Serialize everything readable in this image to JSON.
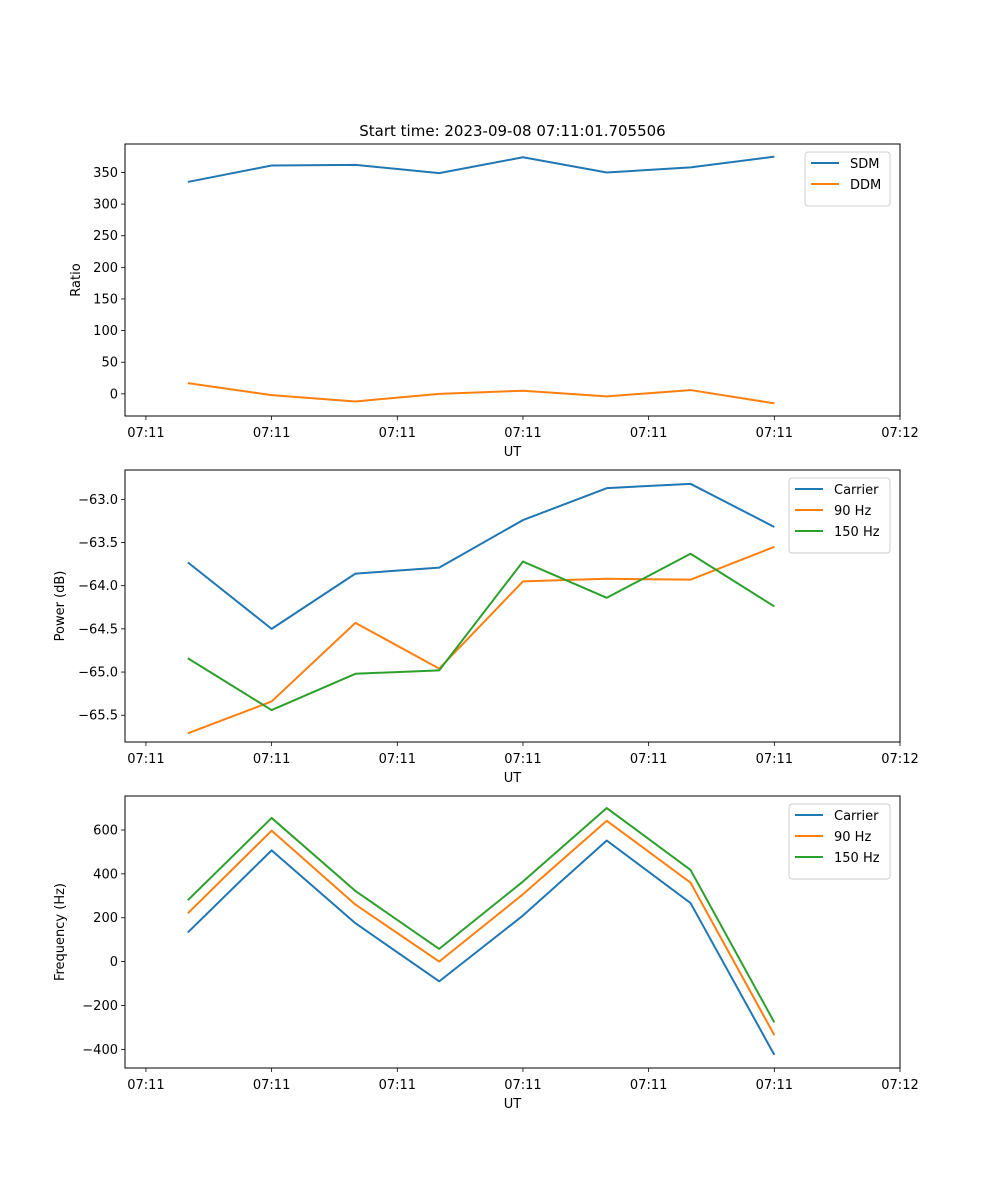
{
  "figure_title": "Start time: 2023-09-08 07:11:01.705506",
  "colors": {
    "blue": "#1f77b4",
    "orange": "#ff7f0e",
    "green": "#2ca02c"
  },
  "chart_data": [
    {
      "type": "line",
      "title": "Start time: 2023-09-08 07:11:01.705506",
      "xlabel": "UT",
      "ylabel": "Ratio",
      "x": [
        1,
        2,
        3,
        4,
        5,
        6,
        7,
        8
      ],
      "xlim": [
        0.25,
        9.5
      ],
      "x_ticks": [
        0.5,
        2,
        3.5,
        5,
        6.5,
        8,
        9.5
      ],
      "x_tick_labels": [
        "07:11",
        "07:11",
        "07:11",
        "07:11",
        "07:11",
        "07:11",
        "07:12"
      ],
      "ylim": [
        -35,
        395
      ],
      "y_ticks": [
        0,
        50,
        100,
        150,
        200,
        250,
        300,
        350
      ],
      "y_tick_labels": [
        "0",
        "50",
        "100",
        "150",
        "200",
        "250",
        "300",
        "350"
      ],
      "legend_position": "top-right",
      "series": [
        {
          "name": "SDM",
          "color": "#1f77b4",
          "values": [
            335,
            361,
            362,
            349,
            374,
            350,
            358,
            375
          ]
        },
        {
          "name": "DDM",
          "color": "#ff7f0e",
          "values": [
            17,
            -2,
            -12,
            0,
            5,
            -4,
            6,
            -15
          ]
        }
      ]
    },
    {
      "type": "line",
      "title": "",
      "xlabel": "UT",
      "ylabel": "Power (dB)",
      "x": [
        1,
        2,
        3,
        4,
        5,
        6,
        7,
        8
      ],
      "xlim": [
        0.25,
        9.5
      ],
      "x_ticks": [
        0.5,
        2,
        3.5,
        5,
        6.5,
        8,
        9.5
      ],
      "x_tick_labels": [
        "07:11",
        "07:11",
        "07:11",
        "07:11",
        "07:11",
        "07:11",
        "07:12"
      ],
      "ylim": [
        -65.81,
        -62.66
      ],
      "y_ticks": [
        -65.5,
        -65.0,
        -64.5,
        -64.0,
        -63.5,
        -63.0
      ],
      "y_tick_labels": [
        "−65.5",
        "−65.0",
        "−64.5",
        "−64.0",
        "−63.5",
        "−63.0"
      ],
      "legend_position": "top-right",
      "series": [
        {
          "name": "Carrier",
          "color": "#1f77b4",
          "values": [
            -63.73,
            -64.5,
            -63.86,
            -63.79,
            -63.24,
            -62.87,
            -62.82,
            -63.32
          ]
        },
        {
          "name": "90 Hz",
          "color": "#ff7f0e",
          "values": [
            -65.71,
            -65.34,
            -64.43,
            -64.96,
            -63.95,
            -63.92,
            -63.93,
            -63.55
          ]
        },
        {
          "name": "150 Hz",
          "color": "#2ca02c",
          "values": [
            -64.84,
            -65.44,
            -65.02,
            -64.98,
            -63.72,
            -64.14,
            -63.63,
            -64.24
          ]
        }
      ]
    },
    {
      "type": "line",
      "title": "",
      "xlabel": "UT",
      "ylabel": "Frequency (Hz)",
      "x": [
        1,
        2,
        3,
        4,
        5,
        6,
        7,
        8
      ],
      "xlim": [
        0.25,
        9.5
      ],
      "x_ticks": [
        0.5,
        2,
        3.5,
        5,
        6.5,
        8,
        9.5
      ],
      "x_tick_labels": [
        "07:11",
        "07:11",
        "07:11",
        "07:11",
        "07:11",
        "07:11",
        "07:12"
      ],
      "ylim": [
        -485,
        755
      ],
      "y_ticks": [
        -400,
        -200,
        0,
        200,
        400,
        600
      ],
      "y_tick_labels": [
        "−400",
        "−200",
        "0",
        "200",
        "400",
        "600"
      ],
      "legend_position": "top-right",
      "series": [
        {
          "name": "Carrier",
          "color": "#1f77b4",
          "values": [
            133,
            507,
            175,
            -90,
            210,
            552,
            267,
            -425
          ]
        },
        {
          "name": "90 Hz",
          "color": "#ff7f0e",
          "values": [
            220,
            597,
            260,
            0,
            307,
            642,
            360,
            -335
          ]
        },
        {
          "name": "150 Hz",
          "color": "#2ca02c",
          "values": [
            280,
            655,
            322,
            58,
            365,
            700,
            418,
            -277
          ]
        }
      ]
    }
  ]
}
